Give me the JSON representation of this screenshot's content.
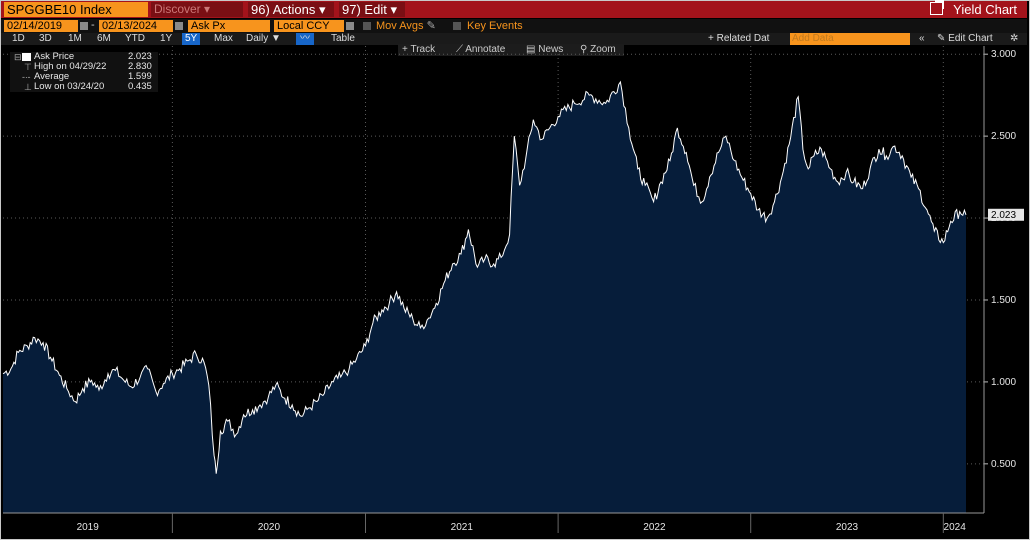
{
  "header": {
    "ticker": "SPGGBE10 Index",
    "discover_label": "Discover",
    "actions_label": "Actions",
    "actions_prefix": "96)",
    "edit_label": "Edit",
    "edit_prefix": "97)",
    "yield_chart_label": "Yield Chart"
  },
  "controls": {
    "start_date": "02/14/2019",
    "end_date": "02/13/2024",
    "field": "Ask Px",
    "currency": "Local CCY",
    "mov_avgs": "Mov Avgs",
    "key_events": "Key Events",
    "periods": [
      "1D",
      "3D",
      "1M",
      "6M",
      "YTD",
      "1Y",
      "5Y",
      "Max"
    ],
    "active_period": "5Y",
    "frequency": "Daily",
    "table_label": "Table",
    "related_data": "+ Related Dat",
    "add_data_placeholder": "Add Data",
    "edit_chart": "Edit Chart",
    "tools": [
      "Track",
      "Annotate",
      "News",
      "Zoom"
    ]
  },
  "legend": {
    "rows": [
      {
        "label": "Ask Price",
        "value": "2.023"
      },
      {
        "label": "High on 04/29/22",
        "value": "2.830"
      },
      {
        "label": "Average",
        "value": "1.599"
      },
      {
        "label": "Low on 03/24/20",
        "value": "0.435"
      }
    ]
  },
  "colors": {
    "header_bg": "#a3131b",
    "field_bg": "#f7941d",
    "area_fill": "#061d3a",
    "line": "#ffffff"
  },
  "chart_data": {
    "type": "area",
    "y_axis": {
      "range": [
        0.2,
        3.05
      ],
      "ticks": [
        "0.500",
        "1.000",
        "1.500",
        "2.000",
        "2.500",
        "3.000"
      ],
      "side": "right"
    },
    "x_axis": {
      "range": [
        "2019-02-14",
        "2024-02-13"
      ],
      "tick_labels": [
        "2019",
        "2020",
        "2021",
        "2022",
        "2023",
        "2024"
      ]
    },
    "grid": true,
    "last_value_label": "2.023",
    "series": [
      {
        "values": [
          [
            "2019-02-14",
            1.05
          ],
          [
            "2019-03-01",
            1.08
          ],
          [
            "2019-03-15",
            1.18
          ],
          [
            "2019-04-01",
            1.22
          ],
          [
            "2019-04-15",
            1.27
          ],
          [
            "2019-05-01",
            1.24
          ],
          [
            "2019-05-15",
            1.15
          ],
          [
            "2019-06-01",
            1.04
          ],
          [
            "2019-06-15",
            0.96
          ],
          [
            "2019-07-01",
            0.88
          ],
          [
            "2019-07-15",
            0.96
          ],
          [
            "2019-08-01",
            1.01
          ],
          [
            "2019-08-15",
            0.95
          ],
          [
            "2019-09-01",
            1.05
          ],
          [
            "2019-09-15",
            1.07
          ],
          [
            "2019-10-01",
            1.01
          ],
          [
            "2019-10-15",
            0.97
          ],
          [
            "2019-11-01",
            1.03
          ],
          [
            "2019-11-15",
            1.08
          ],
          [
            "2019-12-01",
            0.94
          ],
          [
            "2019-12-15",
            0.99
          ],
          [
            "2020-01-01",
            1.05
          ],
          [
            "2020-01-15",
            1.08
          ],
          [
            "2020-02-01",
            1.13
          ],
          [
            "2020-02-15",
            1.17
          ],
          [
            "2020-03-01",
            1.12
          ],
          [
            "2020-03-10",
            0.98
          ],
          [
            "2020-03-20",
            0.55
          ],
          [
            "2020-03-24",
            0.44
          ],
          [
            "2020-04-01",
            0.7
          ],
          [
            "2020-04-15",
            0.76
          ],
          [
            "2020-05-01",
            0.68
          ],
          [
            "2020-05-15",
            0.8
          ],
          [
            "2020-06-01",
            0.83
          ],
          [
            "2020-06-15",
            0.86
          ],
          [
            "2020-07-01",
            0.91
          ],
          [
            "2020-07-15",
            0.98
          ],
          [
            "2020-08-01",
            0.9
          ],
          [
            "2020-08-15",
            0.86
          ],
          [
            "2020-09-01",
            0.79
          ],
          [
            "2020-09-15",
            0.84
          ],
          [
            "2020-10-01",
            0.88
          ],
          [
            "2020-10-15",
            0.93
          ],
          [
            "2020-11-01",
            1.0
          ],
          [
            "2020-11-15",
            1.03
          ],
          [
            "2020-12-01",
            1.08
          ],
          [
            "2020-12-15",
            1.14
          ],
          [
            "2021-01-01",
            1.22
          ],
          [
            "2021-01-15",
            1.36
          ],
          [
            "2021-02-01",
            1.44
          ],
          [
            "2021-02-15",
            1.48
          ],
          [
            "2021-03-01",
            1.55
          ],
          [
            "2021-03-15",
            1.45
          ],
          [
            "2021-04-01",
            1.38
          ],
          [
            "2021-04-15",
            1.33
          ],
          [
            "2021-05-01",
            1.39
          ],
          [
            "2021-05-15",
            1.48
          ],
          [
            "2021-06-01",
            1.62
          ],
          [
            "2021-06-15",
            1.72
          ],
          [
            "2021-07-01",
            1.78
          ],
          [
            "2021-07-15",
            1.93
          ],
          [
            "2021-08-01",
            1.7
          ],
          [
            "2021-08-15",
            1.75
          ],
          [
            "2021-09-01",
            1.72
          ],
          [
            "2021-09-15",
            1.76
          ],
          [
            "2021-10-01",
            1.9
          ],
          [
            "2021-10-10",
            2.5
          ],
          [
            "2021-10-20",
            2.2
          ],
          [
            "2021-11-01",
            2.37
          ],
          [
            "2021-11-15",
            2.6
          ],
          [
            "2021-12-01",
            2.48
          ],
          [
            "2022-01-01",
            2.62
          ],
          [
            "2022-02-01",
            2.7
          ],
          [
            "2022-03-01",
            2.75
          ],
          [
            "2022-04-01",
            2.7
          ],
          [
            "2022-04-29",
            2.83
          ],
          [
            "2022-05-15",
            2.55
          ],
          [
            "2022-06-01",
            2.3
          ],
          [
            "2022-06-15",
            2.2
          ],
          [
            "2022-07-01",
            2.1
          ],
          [
            "2022-07-15",
            2.22
          ],
          [
            "2022-08-01",
            2.35
          ],
          [
            "2022-08-15",
            2.55
          ],
          [
            "2022-09-01",
            2.4
          ],
          [
            "2022-09-15",
            2.2
          ],
          [
            "2022-10-01",
            2.1
          ],
          [
            "2022-10-15",
            2.25
          ],
          [
            "2022-11-01",
            2.4
          ],
          [
            "2022-11-15",
            2.5
          ],
          [
            "2022-12-01",
            2.35
          ],
          [
            "2022-12-15",
            2.25
          ],
          [
            "2023-01-01",
            2.15
          ],
          [
            "2023-01-15",
            2.05
          ],
          [
            "2023-02-01",
            2.0
          ],
          [
            "2023-02-15",
            2.1
          ],
          [
            "2023-03-01",
            2.25
          ],
          [
            "2023-03-15",
            2.45
          ],
          [
            "2023-04-01",
            2.74
          ],
          [
            "2023-04-10",
            2.42
          ],
          [
            "2023-04-20",
            2.3
          ],
          [
            "2023-05-01",
            2.38
          ],
          [
            "2023-05-15",
            2.42
          ],
          [
            "2023-06-01",
            2.3
          ],
          [
            "2023-06-15",
            2.22
          ],
          [
            "2023-07-01",
            2.28
          ],
          [
            "2023-07-15",
            2.22
          ],
          [
            "2023-08-01",
            2.18
          ],
          [
            "2023-08-15",
            2.3
          ],
          [
            "2023-09-01",
            2.42
          ],
          [
            "2023-09-15",
            2.38
          ],
          [
            "2023-10-01",
            2.44
          ],
          [
            "2023-10-15",
            2.38
          ],
          [
            "2023-11-01",
            2.25
          ],
          [
            "2023-11-15",
            2.18
          ],
          [
            "2023-12-01",
            2.05
          ],
          [
            "2023-12-15",
            1.92
          ],
          [
            "2024-01-01",
            1.85
          ],
          [
            "2024-01-15",
            1.98
          ],
          [
            "2024-02-01",
            2.04
          ],
          [
            "2024-02-13",
            2.02
          ]
        ]
      }
    ]
  }
}
